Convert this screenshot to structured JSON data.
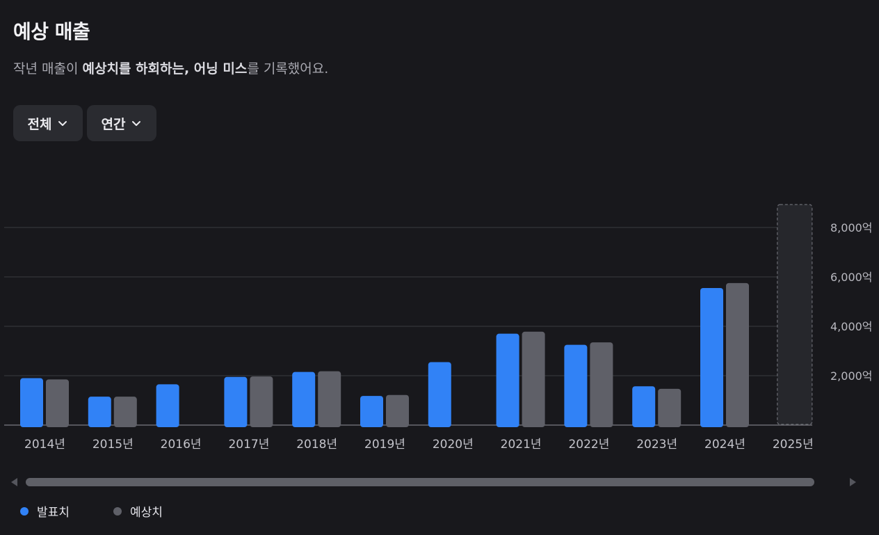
{
  "header": {
    "title": "예상 매출",
    "subtitle_parts": [
      "작년 매출이 ",
      "예상치를 하회하는, 어닝 미스",
      "를 기록했어요."
    ]
  },
  "filters": [
    {
      "label": "전체",
      "icon": "chevron-down-icon"
    },
    {
      "label": "연간",
      "icon": "chevron-down-icon"
    }
  ],
  "legend": [
    {
      "label": "발표치",
      "color": "#3182f6"
    },
    {
      "label": "예상치",
      "color": "#5f6068"
    }
  ],
  "chart_data": {
    "type": "bar",
    "categories": [
      "2014년",
      "2015년",
      "2016년",
      "2017년",
      "2018년",
      "2019년",
      "2020년",
      "2021년",
      "2022년",
      "2023년",
      "2024년",
      "2025년"
    ],
    "series": [
      {
        "name": "발표치",
        "color": "#3182f6",
        "values": [
          1900,
          1150,
          1650,
          1950,
          2150,
          1180,
          2550,
          3700,
          3250,
          1570,
          5550,
          null
        ]
      },
      {
        "name": "예상치",
        "color": "#5f6068",
        "values": [
          1850,
          1150,
          null,
          1970,
          2180,
          1220,
          null,
          3780,
          3350,
          1470,
          5750,
          null
        ]
      }
    ],
    "highlight_category": "2025년",
    "yticks": [
      "2,000억",
      "4,000억",
      "6,000억",
      "8,000억"
    ],
    "ytick_values": [
      2000,
      4000,
      6000,
      8000
    ],
    "ylim": [
      0,
      8000
    ],
    "grid": true,
    "legend_position": "bottom-left"
  }
}
